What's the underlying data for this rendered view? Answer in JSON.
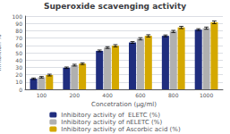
{
  "chart_data": {
    "type": "bar",
    "title": "Superoxide scavenging activity",
    "xlabel": "Concetration (μg/ml)",
    "ylabel": "Inhibition %",
    "categories": [
      "100",
      "200",
      "400",
      "600",
      "800",
      "1000"
    ],
    "series": [
      {
        "name": "Inhibitory activity of  ELETC (%)",
        "color": "#1f2d7e",
        "values": [
          14.5,
          29.5,
          52.5,
          64.0,
          73.0,
          81.5
        ],
        "errors": [
          1.0,
          1.0,
          1.2,
          1.2,
          1.2,
          1.2
        ]
      },
      {
        "name": "Inhibitory activity of nELETC (%)",
        "color": "#b0b0b0",
        "values": [
          16.5,
          33.0,
          57.0,
          69.0,
          79.0,
          83.5
        ],
        "errors": [
          1.0,
          1.2,
          1.2,
          1.5,
          1.5,
          1.5
        ]
      },
      {
        "name": "Inhibitory activity of Ascorbic acid (%)",
        "color": "#d4a800",
        "values": [
          19.5,
          35.0,
          59.5,
          73.0,
          84.5,
          91.5
        ],
        "errors": [
          1.2,
          1.2,
          1.5,
          1.5,
          1.5,
          1.8
        ]
      }
    ],
    "ylim": [
      0,
      100
    ],
    "yticks": [
      0,
      10,
      20,
      30,
      40,
      50,
      60,
      70,
      80,
      90,
      100
    ],
    "grid": true,
    "legend": "bottom"
  }
}
